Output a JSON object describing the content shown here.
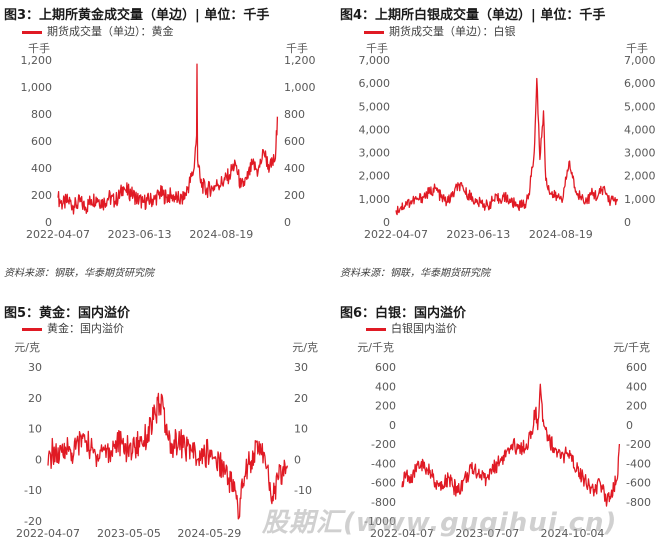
{
  "colors": {
    "series": "#e01a24",
    "axis_text": "#595959"
  },
  "watermark": "股期汇(www.guqihui.cn)",
  "panels": [
    {
      "title": "图3：上期所黄金成交量（单边）|   单位：千手",
      "legend": "期货成交量（单边）：黄金",
      "source": "资料来源：钢联，华泰期货研究院"
    },
    {
      "title": "图4：上期所白银成交量（单边）| 单位：千手",
      "legend": "期货成交量（单边）：白银",
      "source": "资料来源：钢联，华泰期货研究院"
    },
    {
      "title": "图5：黄金：国内溢价",
      "legend": "黄金：国内溢价",
      "source": ""
    },
    {
      "title": "图6：白银：国内溢价",
      "legend": "白银国内溢价",
      "source": ""
    }
  ],
  "chart_data": [
    {
      "type": "line",
      "unit_left": "千手",
      "unit_right": "千手",
      "ylim": [
        0,
        1200
      ],
      "yticks": [
        "0",
        "200",
        "400",
        "600",
        "800",
        "1,000",
        "1,200"
      ],
      "yticks_right": [
        "0",
        "200",
        "400",
        "600",
        "800",
        "1,000",
        "1,200"
      ],
      "xticks": [
        "2022-04-07",
        "2023-06-13",
        "2024-08-19"
      ],
      "xlim": [
        "2022-04-07",
        "2025-06-15"
      ],
      "series": [
        {
          "name": "期货成交量（单边）：黄金",
          "points": [
            [
              "2022-04-07",
              180
            ],
            [
              "2022-05-01",
              130
            ],
            [
              "2022-06-01",
              160
            ],
            [
              "2022-07-01",
              115
            ],
            [
              "2022-08-01",
              150
            ],
            [
              "2022-09-01",
              105
            ],
            [
              "2022-10-01",
              165
            ],
            [
              "2022-11-01",
              175
            ],
            [
              "2022-12-01",
              140
            ],
            [
              "2023-01-01",
              185
            ],
            [
              "2023-02-01",
              150
            ],
            [
              "2023-03-01",
              200
            ],
            [
              "2023-03-20",
              260
            ],
            [
              "2023-04-01",
              235
            ],
            [
              "2023-05-01",
              210
            ],
            [
              "2023-06-01",
              175
            ],
            [
              "2023-07-01",
              145
            ],
            [
              "2023-08-01",
              160
            ],
            [
              "2023-09-01",
              170
            ],
            [
              "2023-10-01",
              215
            ],
            [
              "2023-11-01",
              185
            ],
            [
              "2023-12-01",
              200
            ],
            [
              "2024-01-01",
              170
            ],
            [
              "2024-02-01",
              165
            ],
            [
              "2024-03-01",
              280
            ],
            [
              "2024-03-25",
              380
            ],
            [
              "2024-04-10",
              640
            ],
            [
              "2024-04-12",
              1170
            ],
            [
              "2024-04-15",
              460
            ],
            [
              "2024-05-01",
              290
            ],
            [
              "2024-06-01",
              235
            ],
            [
              "2024-07-01",
              255
            ],
            [
              "2024-08-01",
              280
            ],
            [
              "2024-09-01",
              300
            ],
            [
              "2024-10-01",
              350
            ],
            [
              "2024-11-01",
              440
            ],
            [
              "2024-12-01",
              260
            ],
            [
              "2025-01-01",
              315
            ],
            [
              "2025-02-01",
              430
            ],
            [
              "2025-03-01",
              370
            ],
            [
              "2025-04-01",
              520
            ],
            [
              "2025-05-01",
              400
            ],
            [
              "2025-06-01",
              470
            ],
            [
              "2025-06-12",
              780
            ]
          ]
        }
      ]
    },
    {
      "type": "line",
      "unit_left": "千手",
      "unit_right": "千手",
      "ylim": [
        0,
        7000
      ],
      "yticks": [
        "0",
        "1,000",
        "2,000",
        "3,000",
        "4,000",
        "5,000",
        "6,000",
        "7,000"
      ],
      "yticks_right": [
        "0",
        "1,000",
        "2,000",
        "3,000",
        "4,000",
        "5,000",
        "6,000",
        "7,000"
      ],
      "xticks": [
        "2022-04-07",
        "2023-06-13",
        "2024-08-19"
      ],
      "xlim": [
        "2022-04-07",
        "2025-06-15"
      ],
      "series": [
        {
          "name": "期货成交量（单边）：白银",
          "points": [
            [
              "2022-04-07",
              500
            ],
            [
              "2022-05-01",
              620
            ],
            [
              "2022-06-01",
              800
            ],
            [
              "2022-07-01",
              900
            ],
            [
              "2022-08-01",
              1000
            ],
            [
              "2022-09-01",
              1100
            ],
            [
              "2022-10-01",
              1300
            ],
            [
              "2022-11-01",
              1450
            ],
            [
              "2022-12-01",
              1050
            ],
            [
              "2023-01-01",
              850
            ],
            [
              "2023-02-01",
              1200
            ],
            [
              "2023-03-01",
              1600
            ],
            [
              "2023-04-01",
              1300
            ],
            [
              "2023-05-01",
              1150
            ],
            [
              "2023-06-01",
              850
            ],
            [
              "2023-07-01",
              800
            ],
            [
              "2023-08-01",
              700
            ],
            [
              "2023-09-01",
              950
            ],
            [
              "2023-10-01",
              1000
            ],
            [
              "2023-11-01",
              1100
            ],
            [
              "2023-12-01",
              850
            ],
            [
              "2024-01-01",
              750
            ],
            [
              "2024-02-01",
              700
            ],
            [
              "2024-03-01",
              1000
            ],
            [
              "2024-04-01",
              3000
            ],
            [
              "2024-04-15",
              6200
            ],
            [
              "2024-05-01",
              2700
            ],
            [
              "2024-05-20",
              4800
            ],
            [
              "2024-06-01",
              1800
            ],
            [
              "2024-07-01",
              1200
            ],
            [
              "2024-08-01",
              1050
            ],
            [
              "2024-09-01",
              1100
            ],
            [
              "2024-10-01",
              2600
            ],
            [
              "2024-11-01",
              1500
            ],
            [
              "2024-12-01",
              1100
            ],
            [
              "2025-01-01",
              900
            ],
            [
              "2025-02-01",
              1250
            ],
            [
              "2025-03-01",
              1100
            ],
            [
              "2025-04-01",
              1500
            ],
            [
              "2025-05-01",
              900
            ],
            [
              "2025-06-12",
              1000
            ]
          ]
        }
      ]
    },
    {
      "type": "line",
      "unit_left": "元/克",
      "unit_right": "元/克",
      "ylim": [
        -20,
        30
      ],
      "yticks": [
        "-20",
        "-10",
        "0",
        "10",
        "20",
        "30"
      ],
      "yticks_right": [
        "-10",
        "0",
        "10",
        "20",
        "30"
      ],
      "xticks": [
        "2022-04-07",
        "2023-05-05",
        "2024-05-29"
      ],
      "xlim": [
        "2022-04-07",
        "2025-06-15"
      ],
      "series": [
        {
          "name": "黄金：国内溢价",
          "points": [
            [
              "2022-04-07",
              -2
            ],
            [
              "2022-05-01",
              3
            ],
            [
              "2022-06-01",
              0
            ],
            [
              "2022-07-01",
              4
            ],
            [
              "2022-08-01",
              2
            ],
            [
              "2022-09-01",
              5
            ],
            [
              "2022-10-01",
              8
            ],
            [
              "2022-11-01",
              3
            ],
            [
              "2022-12-01",
              1
            ],
            [
              "2023-01-01",
              4
            ],
            [
              "2023-02-01",
              2
            ],
            [
              "2023-03-01",
              6
            ],
            [
              "2023-04-01",
              5
            ],
            [
              "2023-05-01",
              3
            ],
            [
              "2023-06-01",
              4
            ],
            [
              "2023-07-01",
              6
            ],
            [
              "2023-08-01",
              8
            ],
            [
              "2023-09-01",
              13
            ],
            [
              "2023-10-01",
              18
            ],
            [
              "2023-10-15",
              20
            ],
            [
              "2023-11-01",
              8
            ],
            [
              "2023-12-01",
              5
            ],
            [
              "2024-01-01",
              6
            ],
            [
              "2024-02-01",
              4
            ],
            [
              "2024-03-01",
              3
            ],
            [
              "2024-04-01",
              0
            ],
            [
              "2024-05-01",
              1
            ],
            [
              "2024-06-01",
              3
            ],
            [
              "2024-07-01",
              0
            ],
            [
              "2024-08-01",
              -2
            ],
            [
              "2024-09-01",
              -6
            ],
            [
              "2024-10-01",
              -10
            ],
            [
              "2024-10-20",
              -19
            ],
            [
              "2024-11-01",
              -8
            ],
            [
              "2024-12-01",
              -2
            ],
            [
              "2025-01-01",
              2
            ],
            [
              "2025-02-01",
              5
            ],
            [
              "2025-03-01",
              -3
            ],
            [
              "2025-04-01",
              -12
            ],
            [
              "2025-05-01",
              -6
            ],
            [
              "2025-06-12",
              -2
            ]
          ]
        }
      ]
    },
    {
      "type": "line",
      "unit_left": "元/千克",
      "unit_right": "元/千克",
      "ylim": [
        -1000,
        600
      ],
      "yticks": [
        "-1000",
        "-800",
        "-600",
        "-400",
        "-200",
        "0",
        "200",
        "400",
        "600"
      ],
      "yticks_right": [
        "-800",
        "-600",
        "-400",
        "-200",
        "0",
        "200",
        "400",
        "600"
      ],
      "xticks": [
        "2022-04-07",
        "2023-07-07",
        "2024-10-04"
      ],
      "xlim": [
        "2022-04-07",
        "2025-06-15"
      ],
      "series": [
        {
          "name": "白银国内溢价",
          "points": [
            [
              "2022-04-07",
              -650
            ],
            [
              "2022-05-01",
              -500
            ],
            [
              "2022-06-01",
              -600
            ],
            [
              "2022-07-01",
              -380
            ],
            [
              "2022-08-01",
              -450
            ],
            [
              "2022-09-01",
              -500
            ],
            [
              "2022-10-01",
              -600
            ],
            [
              "2022-11-01",
              -680
            ],
            [
              "2022-12-01",
              -560
            ],
            [
              "2023-01-01",
              -620
            ],
            [
              "2023-02-01",
              -700
            ],
            [
              "2023-03-01",
              -580
            ],
            [
              "2023-04-01",
              -500
            ],
            [
              "2023-05-01",
              -450
            ],
            [
              "2023-06-01",
              -520
            ],
            [
              "2023-07-01",
              -560
            ],
            [
              "2023-08-01",
              -480
            ],
            [
              "2023-09-01",
              -400
            ],
            [
              "2023-10-01",
              -320
            ],
            [
              "2023-11-01",
              -300
            ],
            [
              "2023-12-01",
              -220
            ],
            [
              "2024-01-01",
              -250
            ],
            [
              "2024-02-01",
              -200
            ],
            [
              "2024-03-01",
              -100
            ],
            [
              "2024-03-20",
              150
            ],
            [
              "2024-04-01",
              -50
            ],
            [
              "2024-04-15",
              420
            ],
            [
              "2024-05-01",
              50
            ],
            [
              "2024-06-01",
              -150
            ],
            [
              "2024-07-01",
              -250
            ],
            [
              "2024-08-01",
              -350
            ],
            [
              "2024-09-01",
              -300
            ],
            [
              "2024-10-01",
              -380
            ],
            [
              "2024-11-01",
              -450
            ],
            [
              "2024-12-01",
              -550
            ],
            [
              "2025-01-01",
              -620
            ],
            [
              "2025-02-01",
              -700
            ],
            [
              "2025-03-01",
              -600
            ],
            [
              "2025-04-01",
              -780
            ],
            [
              "2025-05-01",
              -680
            ],
            [
              "2025-06-01",
              -560
            ],
            [
              "2025-06-12",
              -200
            ]
          ]
        }
      ]
    }
  ]
}
